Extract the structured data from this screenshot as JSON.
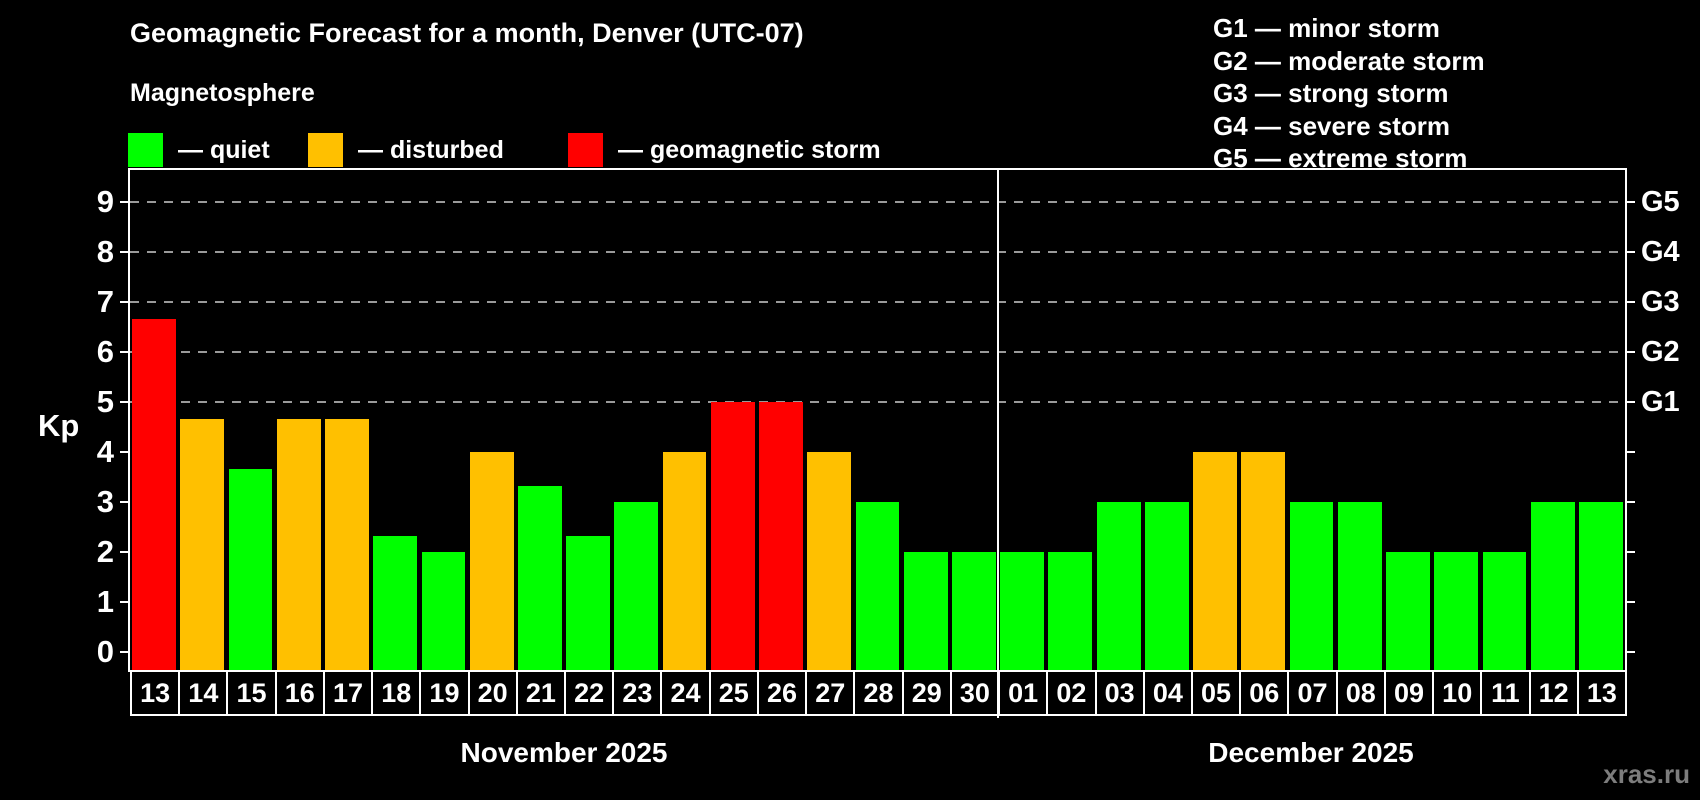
{
  "header": {
    "title": "Geomagnetic Forecast for a month, Denver (UTC-07)",
    "subtitle": "Magnetosphere"
  },
  "legend": {
    "items": [
      {
        "key": "quiet",
        "label": "— quiet",
        "color": "#00ff00"
      },
      {
        "key": "disturbed",
        "label": "— disturbed",
        "color": "#ffc000"
      },
      {
        "key": "storm",
        "label": "— geomagnetic storm",
        "color": "#ff0000"
      }
    ]
  },
  "g_legend": {
    "lines": [
      "G1 — minor storm",
      "G2 — moderate storm",
      "G3 — strong storm",
      "G4 — severe storm",
      "G5 — extreme storm"
    ]
  },
  "watermark": "xras.ru",
  "chart_data": {
    "type": "bar",
    "title": "Geomagnetic Forecast for a month, Denver (UTC-07)",
    "ylabel": "Kp",
    "ylim": [
      -0.36,
      9.64
    ],
    "yticks": [
      0,
      1,
      2,
      3,
      4,
      5,
      6,
      7,
      8,
      9
    ],
    "grid_levels": [
      5,
      6,
      7,
      8,
      9
    ],
    "right_axis_labels": [
      {
        "kp": 5,
        "label": "G1"
      },
      {
        "kp": 6,
        "label": "G2"
      },
      {
        "kp": 7,
        "label": "G3"
      },
      {
        "kp": 8,
        "label": "G4"
      },
      {
        "kp": 9,
        "label": "G5"
      }
    ],
    "level_colors": {
      "quiet": "#00ff00",
      "disturbed": "#ffc000",
      "storm": "#ff0000"
    },
    "months": [
      {
        "label": "November 2025",
        "days": [
          "13",
          "14",
          "15",
          "16",
          "17",
          "18",
          "19",
          "20",
          "21",
          "22",
          "23",
          "24",
          "25",
          "26",
          "27",
          "28",
          "29",
          "30"
        ],
        "values": [
          6.67,
          4.67,
          3.67,
          4.67,
          4.67,
          2.33,
          2.0,
          4.0,
          3.33,
          2.33,
          3.0,
          4.0,
          5.0,
          5.0,
          4.0,
          3.0,
          2.0,
          2.0
        ],
        "levels": [
          "storm",
          "disturbed",
          "quiet",
          "disturbed",
          "disturbed",
          "quiet",
          "quiet",
          "disturbed",
          "quiet",
          "quiet",
          "quiet",
          "disturbed",
          "storm",
          "storm",
          "disturbed",
          "quiet",
          "quiet",
          "quiet"
        ]
      },
      {
        "label": "December 2025",
        "days": [
          "01",
          "02",
          "03",
          "04",
          "05",
          "06",
          "07",
          "08",
          "09",
          "10",
          "11",
          "12",
          "13"
        ],
        "values": [
          2.0,
          2.0,
          3.0,
          3.0,
          4.0,
          4.0,
          3.0,
          3.0,
          2.0,
          2.0,
          2.0,
          3.0,
          3.0
        ],
        "levels": [
          "quiet",
          "quiet",
          "quiet",
          "quiet",
          "disturbed",
          "disturbed",
          "quiet",
          "quiet",
          "quiet",
          "quiet",
          "quiet",
          "quiet",
          "quiet"
        ]
      }
    ]
  }
}
